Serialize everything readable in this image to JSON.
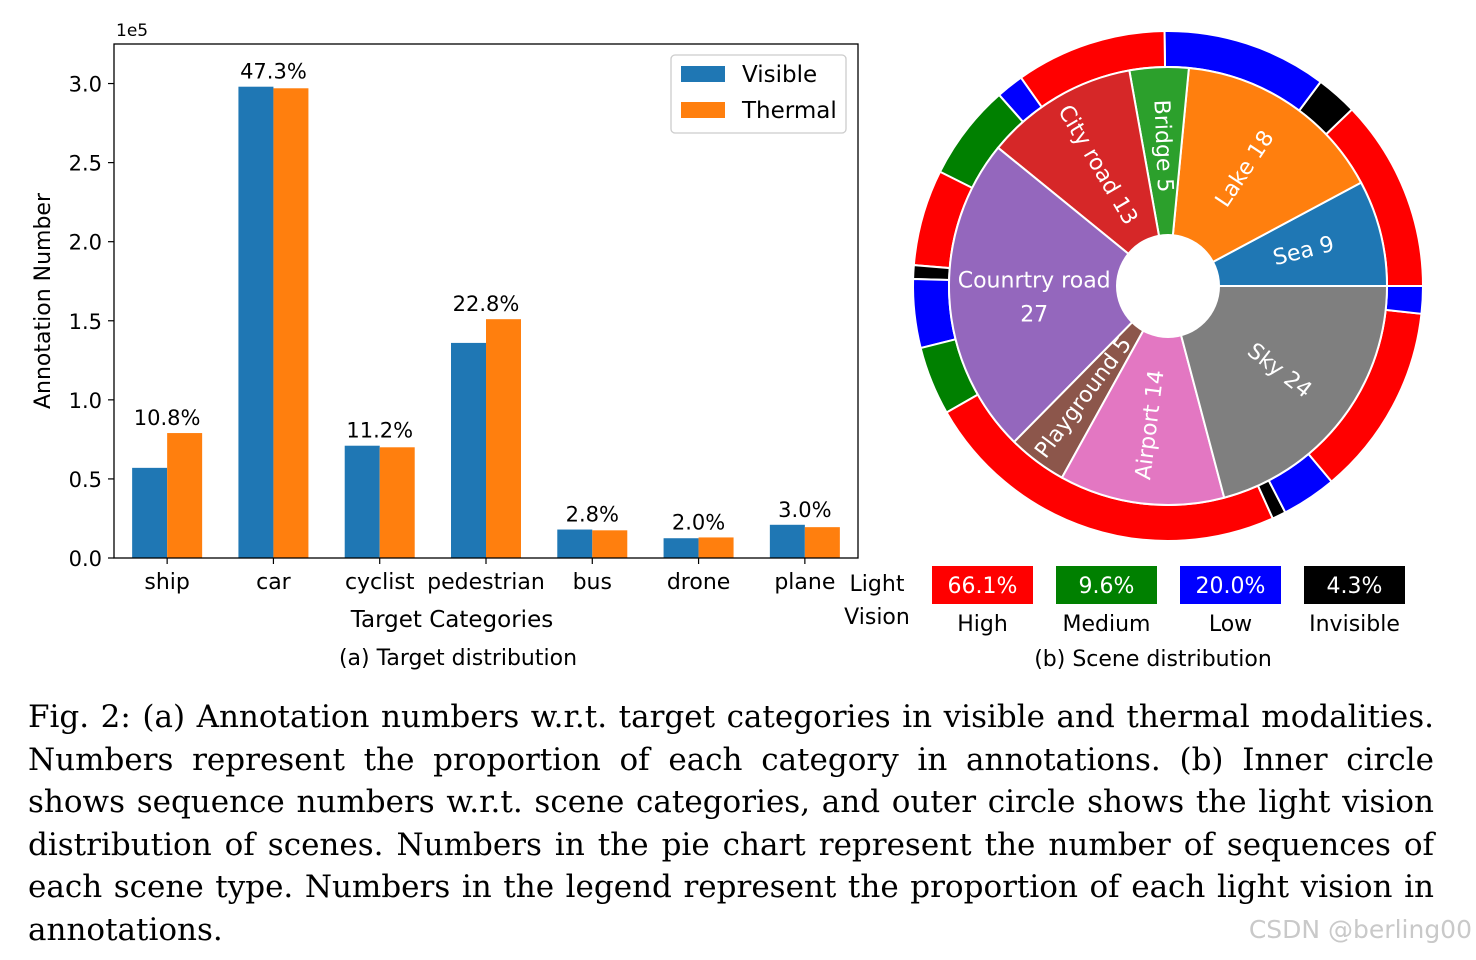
{
  "chart_data": [
    {
      "type": "bar",
      "title": "(a) Target distribution",
      "xlabel": "Target Categories",
      "ylabel": "Annotation Number",
      "y_scale_label": "1e5",
      "ylim": [
        0,
        3.25
      ],
      "yticks": [
        0.0,
        0.5,
        1.0,
        1.5,
        2.0,
        2.5,
        3.0
      ],
      "ytick_labels": [
        "0.0",
        "0.5",
        "1.0",
        "1.5",
        "2.0",
        "2.5",
        "3.0"
      ],
      "legend_position": "top-right",
      "categories": [
        "ship",
        "car",
        "cyclist",
        "pedestrian",
        "bus",
        "drone",
        "plane"
      ],
      "series": [
        {
          "name": "Visible",
          "color": "#1f77b4",
          "values": [
            0.57,
            2.98,
            0.71,
            1.36,
            0.18,
            0.125,
            0.21
          ]
        },
        {
          "name": "Thermal",
          "color": "#ff7f0e",
          "values": [
            0.79,
            2.97,
            0.7,
            1.51,
            0.175,
            0.13,
            0.195
          ]
        }
      ],
      "annotations": [
        "10.8%",
        "47.3%",
        "11.2%",
        "22.8%",
        "2.8%",
        "2.0%",
        "3.0%"
      ]
    },
    {
      "type": "pie",
      "title": "(b) Scene distribution",
      "inner": {
        "slices": [
          {
            "label": "Sea 9",
            "value": 9,
            "color": "#1f77b4"
          },
          {
            "label": "Lake 18",
            "value": 18,
            "color": "#ff7f0e"
          },
          {
            "label": "Bridge 5",
            "value": 5,
            "color": "#2ca02c"
          },
          {
            "label": "City road 13",
            "value": 13,
            "color": "#d62728"
          },
          {
            "label": "Counrtry road",
            "label2": "27",
            "value": 27,
            "color": "#9467bd"
          },
          {
            "label": "Playground 5",
            "value": 5,
            "color": "#8c564b"
          },
          {
            "label": "Airport 14",
            "value": 14,
            "color": "#e377c2"
          },
          {
            "label": "Sky 24",
            "value": 24,
            "color": "#7f7f7f"
          }
        ]
      },
      "outer": {
        "segments": [
          {
            "level": "High",
            "start": 0,
            "end": 14
          },
          {
            "level": "Invisible",
            "start": 14,
            "end": 17
          },
          {
            "level": "Low",
            "start": 17,
            "end": 29
          },
          {
            "level": "High",
            "start": 29,
            "end": 40
          },
          {
            "level": "Low",
            "start": 40,
            "end": 42
          },
          {
            "level": "Medium",
            "start": 42,
            "end": 49
          },
          {
            "level": "High",
            "start": 49,
            "end": 56
          },
          {
            "level": "Invisible",
            "start": 56,
            "end": 57
          },
          {
            "level": "Low",
            "start": 57,
            "end": 62
          },
          {
            "level": "Medium",
            "start": 62,
            "end": 67
          },
          {
            "level": "High",
            "start": 67,
            "end": 94
          },
          {
            "level": "Invisible",
            "start": 94,
            "end": 95
          },
          {
            "level": "Low",
            "start": 95,
            "end": 99
          },
          {
            "level": "High",
            "start": 99,
            "end": 113
          },
          {
            "level": "Low",
            "start": 113,
            "end": 115
          },
          {
            "level": "High",
            "start": 115,
            "end": 115
          }
        ]
      },
      "legend": {
        "row_label": "Light Vision",
        "items": [
          {
            "level": "High",
            "pct": "66.1%",
            "color": "#ff0000",
            "text_color": "#ffffff"
          },
          {
            "level": "Medium",
            "pct": "9.6%",
            "color": "#008000",
            "text_color": "#ffffff"
          },
          {
            "level": "Low",
            "pct": "20.0%",
            "color": "#0000ff",
            "text_color": "#ffffff"
          },
          {
            "level": "Invisible",
            "pct": "4.3%",
            "color": "#000000",
            "text_color": "#ffffff"
          }
        ]
      }
    }
  ],
  "caption": "Fig. 2: (a) Annotation numbers w.r.t. target categories in visible and thermal modalities. Numbers represent the proportion of each category in annotations. (b) Inner circle shows sequence numbers w.r.t. scene categories, and outer circle shows the light vision distribution of scenes. Numbers in the pie chart represent the number of sequences of each scene type. Numbers in the legend represent the proportion of each light vision in annotations.",
  "watermark": "CSDN @berling00"
}
